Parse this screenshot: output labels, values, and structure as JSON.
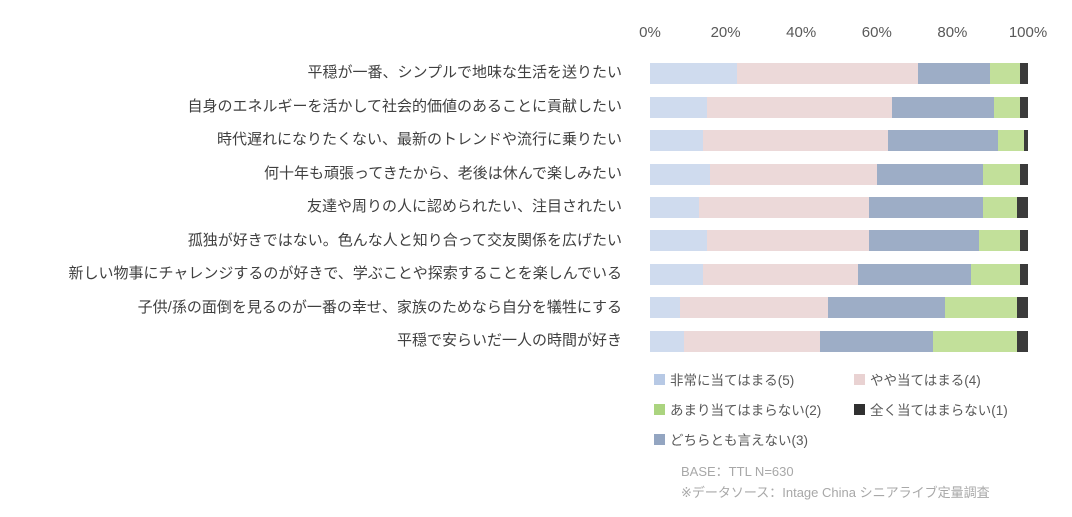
{
  "chart_data": {
    "type": "bar",
    "orientation": "horizontal",
    "stacked": true,
    "grid": false,
    "x_axis": {
      "range": [
        0,
        100
      ],
      "ticks": [
        "0%",
        "20%",
        "40%",
        "60%",
        "80%",
        "100%"
      ]
    },
    "categories": [
      "平穏が一番、シンプルで地味な生活を送りたい",
      "自身のエネルギーを活かして社会的価値のあることに貢献したい",
      "時代遅れになりたくない、最新のトレンドや流行に乗りたい",
      "何十年も頑張ってきたから、老後は休んで楽しみたい",
      "友達や周りの人に認められたい、注目されたい",
      "孤独が好きではない。色んな人と知り合って交友関係を広げたい",
      "新しい物事にチャレンジするのが好きで、学ぶことや探索することを楽しんでいる",
      "子供/孫の面倒を見るのが一番の幸せ、家族のためなら自分を犠牲にする",
      "平穏で安らいだ一人の時間が好き"
    ],
    "series": [
      {
        "name": "非常に当てはまる(5)",
        "color": "#cfdbee",
        "values": [
          23,
          15,
          14,
          16,
          13,
          15,
          14,
          8,
          9
        ]
      },
      {
        "name": "やや当てはまる(4)",
        "color": "#ecd9d9",
        "values": [
          48,
          49,
          49,
          44,
          45,
          43,
          41,
          39,
          36
        ]
      },
      {
        "name": "どちらとも言えない(3)",
        "color": "#9dadc6",
        "values": [
          19,
          27,
          29,
          28,
          30,
          29,
          30,
          31,
          30
        ]
      },
      {
        "name": "あまり当てはまらない(2)",
        "color": "#c2e09a",
        "values": [
          8,
          7,
          7,
          10,
          9,
          11,
          13,
          19,
          22
        ]
      },
      {
        "name": "全く当てはまらない(1)",
        "color": "#3b3b3b",
        "values": [
          2,
          2,
          1,
          2,
          3,
          2,
          2,
          3,
          3
        ]
      }
    ],
    "legend_position": "bottom-right"
  },
  "legend_items": [
    {
      "label": "非常に当てはまる(5)",
      "color": "#b7c9e5"
    },
    {
      "label": "やや当てはまる(4)",
      "color": "#e9d2d2"
    },
    {
      "label": "あまり当てはまらない(2)",
      "color": "#abd47f"
    },
    {
      "label": "全く当てはまらない(1)",
      "color": "#303030"
    },
    {
      "label": "どちらとも言えない(3)",
      "color": "#93a5c1"
    }
  ],
  "footer": {
    "base": "BASE：TTL N=630",
    "source": "※データソース：Intage China シニアライブ定量調査"
  }
}
